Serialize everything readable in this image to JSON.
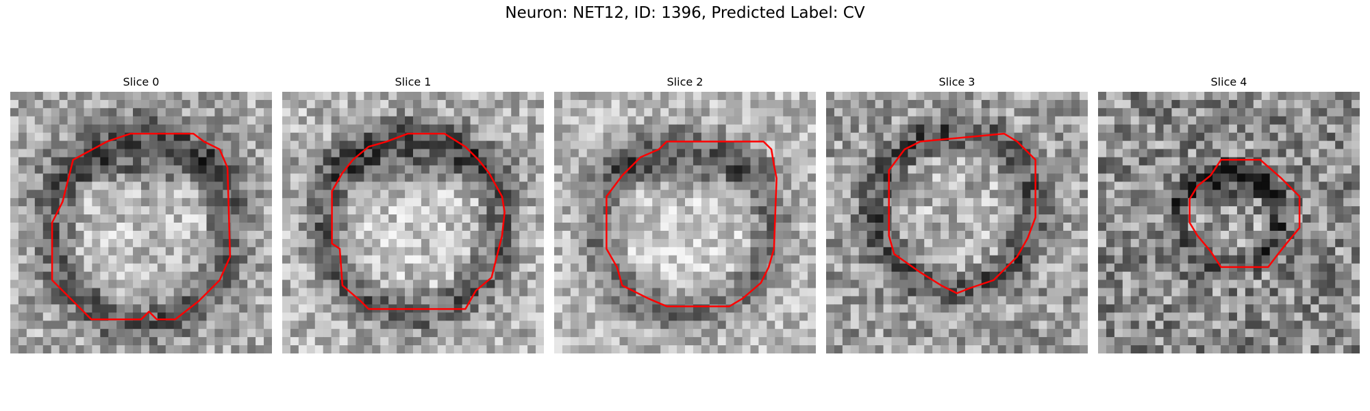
{
  "figure": {
    "title": "Neuron: NET12, ID: 1396, Predicted Label: CV"
  },
  "colors": {
    "contour": "#ff0000",
    "background": "#ffffff"
  },
  "slices": [
    {
      "title": "Slice 0"
    },
    {
      "title": "Slice 1"
    },
    {
      "title": "Slice 2"
    },
    {
      "title": "Slice 3"
    },
    {
      "title": "Slice 4"
    }
  ]
}
